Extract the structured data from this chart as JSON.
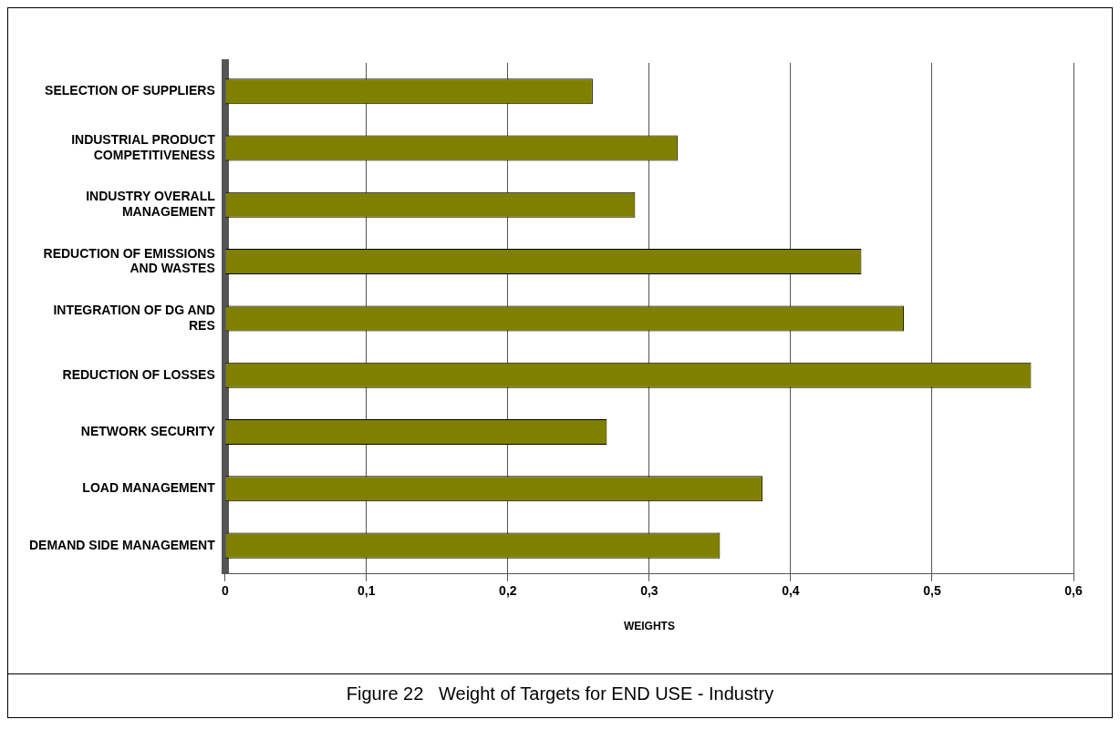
{
  "chart_data": {
    "type": "bar",
    "orientation": "horizontal",
    "title": "Figure 22   Weight of Targets for END USE - Industry",
    "xlabel": "WEIGHTS",
    "categories": [
      "SELECTION OF SUPPLIERS",
      "INDUSTRIAL PRODUCT COMPETITIVENESS",
      "INDUSTRY OVERALL MANAGEMENT",
      "REDUCTION OF EMISSIONS AND WASTES",
      "INTEGRATION OF DG AND RES",
      "REDUCTION OF LOSSES",
      "NETWORK SECURITY",
      "LOAD MANAGEMENT",
      "DEMAND SIDE MANAGEMENT"
    ],
    "values": [
      0.26,
      0.32,
      0.29,
      0.45,
      0.48,
      0.57,
      0.27,
      0.38,
      0.35
    ],
    "color": "#808000",
    "xlim": [
      0,
      0.6
    ],
    "xticks": [
      {
        "value": 0,
        "label": "0"
      },
      {
        "value": 0.1,
        "label": "0,1"
      },
      {
        "value": 0.2,
        "label": "0,2"
      },
      {
        "value": 0.3,
        "label": "0,3"
      },
      {
        "value": 0.4,
        "label": "0,4"
      },
      {
        "value": 0.5,
        "label": "0,5"
      },
      {
        "value": 0.6,
        "label": "0,6"
      }
    ],
    "grid": "x"
  }
}
